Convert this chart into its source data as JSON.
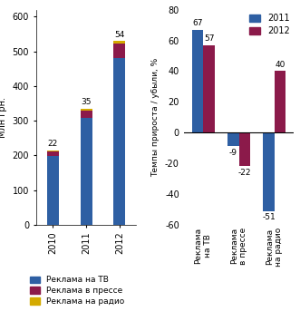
{
  "bar_years": [
    "2010",
    "2011",
    "2012"
  ],
  "tv_values": [
    198,
    308,
    480
  ],
  "press_values": [
    13,
    22,
    42
  ],
  "radio_values": [
    4,
    5,
    8
  ],
  "bar_totals": [
    22,
    35,
    54
  ],
  "tv_color": "#2E5FA3",
  "press_color": "#8B1A4A",
  "radio_color": "#D4AA00",
  "bar_ylabel": "Млн грн.",
  "bar_ylim": [
    0,
    620
  ],
  "bar_yticks": [
    0,
    100,
    200,
    300,
    400,
    500,
    600
  ],
  "growth_categories": [
    "Реклама\nна ТВ",
    "Реклама\nв прессе",
    "Реклама\nна радио"
  ],
  "growth_2011": [
    67,
    -9,
    -51
  ],
  "growth_2012": [
    57,
    -22,
    40
  ],
  "growth_ylabel": "Темпы прироста / убыли, %",
  "growth_ylim": [
    -60,
    80
  ],
  "growth_yticks": [
    -60,
    -40,
    -20,
    0,
    20,
    40,
    60,
    80
  ],
  "legend_2011": "2011",
  "legend_2012": "2012",
  "legend_tv": "Реклама на ТВ",
  "legend_press": "Реклама в прессе",
  "legend_radio": "Реклама на радио"
}
